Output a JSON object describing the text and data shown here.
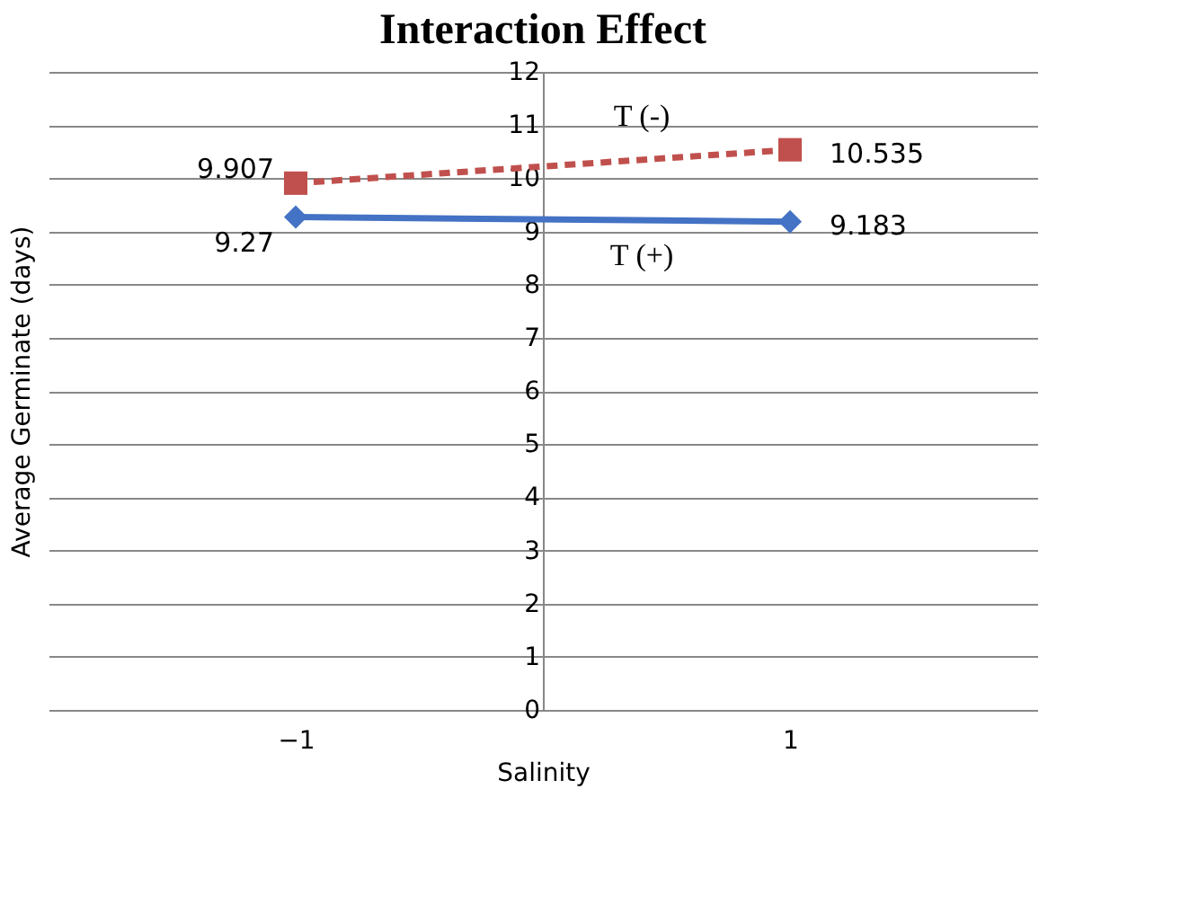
{
  "chart_data": {
    "type": "line",
    "title": "Interaction Effect",
    "xlabel": "Salinity",
    "ylabel": "Average Germinate (days)",
    "x": [
      -1,
      1
    ],
    "xlim": [
      -2,
      2
    ],
    "xticks": [
      -1,
      1
    ],
    "ylim": [
      0,
      12
    ],
    "yticks": [
      0,
      1,
      2,
      3,
      4,
      5,
      6,
      7,
      8,
      9,
      10,
      11,
      12
    ],
    "series": [
      {
        "name": "T (+)",
        "color": "#4472c4",
        "values": [
          9.27,
          9.183
        ],
        "marker": "diamond",
        "line_style": "solid"
      },
      {
        "name": "T (-)",
        "color": "#c0504d",
        "values": [
          9.907,
          10.535
        ],
        "marker": "square",
        "line_style": "dashed"
      }
    ],
    "data_labels": true,
    "grid": "y",
    "legend": false
  }
}
